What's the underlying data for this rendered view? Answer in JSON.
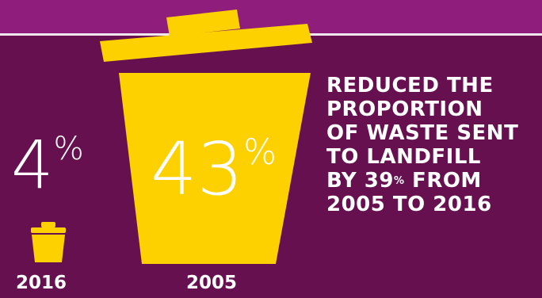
{
  "colors": {
    "background": "#66104f",
    "top_band": "#8e1d7b",
    "top_line": "#f2e7ef",
    "bin": "#fdd000",
    "text": "#ffffff"
  },
  "small_bin": {
    "icon": "trash-bin-icon",
    "value": "4",
    "unit": "%",
    "year": "2016"
  },
  "large_bin": {
    "icon": "trash-bin-icon",
    "value": "43",
    "unit": "%",
    "year": "2005"
  },
  "headline": {
    "line1": "REDUCED THE",
    "line2": "PROPORTION",
    "line3": "OF WASTE SENT",
    "line4": "TO LANDFILL",
    "line5_prefix": "BY 39",
    "line5_unit": "%",
    "line5_suffix": " FROM",
    "line6": "2005 TO 2016"
  }
}
